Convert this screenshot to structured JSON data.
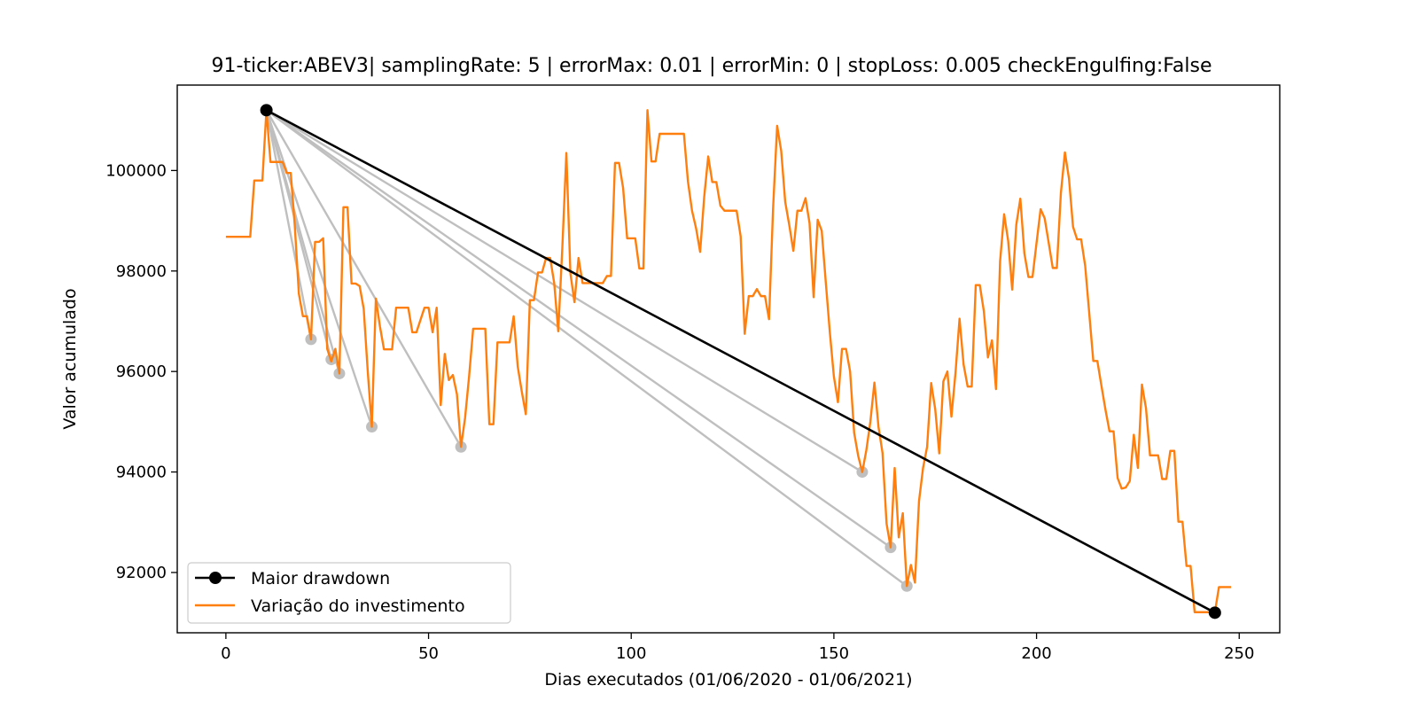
{
  "chart_data": {
    "type": "line",
    "title": "91-ticker:ABEV3| samplingRate: 5 | errorMax: 0.01 | errorMin: 0 | stopLoss: 0.005 checkEngulfing:False",
    "xlabel": "Dias executados (01/06/2020 - 01/06/2021)",
    "ylabel": "Valor acumulado",
    "xlim": [
      -12,
      260
    ],
    "ylim": [
      90800,
      101700
    ],
    "xticks": [
      0,
      50,
      100,
      150,
      200,
      250
    ],
    "yticks": [
      92000,
      94000,
      96000,
      98000,
      100000
    ],
    "legend_position": "lower-left",
    "grid": false,
    "colors": {
      "main": "#ff7f0e",
      "drawdown": "#000000",
      "minor": "#bfbfbf"
    },
    "series": [
      {
        "name": "Variação do investimento",
        "color": "#ff7f0e",
        "points": [
          [
            0,
            98680
          ],
          [
            6,
            98680
          ],
          [
            7,
            99800
          ],
          [
            9,
            99800
          ],
          [
            10,
            101200
          ],
          [
            11,
            100170
          ],
          [
            14,
            100170
          ],
          [
            15,
            99950
          ],
          [
            16,
            99950
          ],
          [
            17,
            98900
          ],
          [
            18,
            97550
          ],
          [
            19,
            97100
          ],
          [
            20,
            97100
          ],
          [
            21,
            96640
          ],
          [
            22,
            98580
          ],
          [
            23,
            98580
          ],
          [
            24,
            98650
          ],
          [
            25,
            96450
          ],
          [
            26,
            96200
          ],
          [
            27,
            96450
          ],
          [
            28,
            95960
          ],
          [
            29,
            99270
          ],
          [
            30,
            99270
          ],
          [
            31,
            97750
          ],
          [
            32,
            97750
          ],
          [
            33,
            97700
          ],
          [
            34,
            97250
          ],
          [
            35,
            96000
          ],
          [
            36,
            94900
          ],
          [
            37,
            97450
          ],
          [
            38,
            96900
          ],
          [
            39,
            96440
          ],
          [
            41,
            96440
          ],
          [
            42,
            97270
          ],
          [
            45,
            97270
          ],
          [
            46,
            96780
          ],
          [
            47,
            96780
          ],
          [
            49,
            97270
          ],
          [
            50,
            97270
          ],
          [
            51,
            96780
          ],
          [
            52,
            97270
          ],
          [
            53,
            95330
          ],
          [
            54,
            96350
          ],
          [
            55,
            95830
          ],
          [
            56,
            95930
          ],
          [
            57,
            95550
          ],
          [
            58,
            94500
          ],
          [
            59,
            95070
          ],
          [
            60,
            95900
          ],
          [
            61,
            96850
          ],
          [
            64,
            96850
          ],
          [
            65,
            94950
          ],
          [
            66,
            94950
          ],
          [
            67,
            96580
          ],
          [
            70,
            96580
          ],
          [
            71,
            97100
          ],
          [
            72,
            96100
          ],
          [
            73,
            95600
          ],
          [
            74,
            95150
          ],
          [
            75,
            97420
          ],
          [
            76,
            97420
          ],
          [
            77,
            97970
          ],
          [
            78,
            97970
          ],
          [
            79,
            98260
          ],
          [
            80,
            98260
          ],
          [
            81,
            97760
          ],
          [
            82,
            96800
          ],
          [
            83,
            98460
          ],
          [
            84,
            100350
          ],
          [
            85,
            97950
          ],
          [
            86,
            97380
          ],
          [
            87,
            98260
          ],
          [
            88,
            97760
          ],
          [
            92,
            97760
          ],
          [
            93,
            97760
          ],
          [
            94,
            97900
          ],
          [
            95,
            97900
          ],
          [
            96,
            100150
          ],
          [
            97,
            100150
          ],
          [
            98,
            99650
          ],
          [
            99,
            98650
          ],
          [
            101,
            98650
          ],
          [
            102,
            98050
          ],
          [
            103,
            98050
          ],
          [
            104,
            101200
          ],
          [
            105,
            100180
          ],
          [
            106,
            100180
          ],
          [
            107,
            100730
          ],
          [
            113,
            100730
          ],
          [
            114,
            99780
          ],
          [
            115,
            99200
          ],
          [
            116,
            98850
          ],
          [
            117,
            98380
          ],
          [
            118,
            99470
          ],
          [
            119,
            100280
          ],
          [
            120,
            99770
          ],
          [
            121,
            99770
          ],
          [
            122,
            99300
          ],
          [
            123,
            99200
          ],
          [
            126,
            99200
          ],
          [
            127,
            98690
          ],
          [
            128,
            96750
          ],
          [
            129,
            97500
          ],
          [
            130,
            97500
          ],
          [
            131,
            97640
          ],
          [
            132,
            97500
          ],
          [
            133,
            97500
          ],
          [
            134,
            97040
          ],
          [
            135,
            99250
          ],
          [
            136,
            100890
          ],
          [
            137,
            100390
          ],
          [
            138,
            99370
          ],
          [
            139,
            98910
          ],
          [
            140,
            98400
          ],
          [
            141,
            99200
          ],
          [
            142,
            99200
          ],
          [
            143,
            99450
          ],
          [
            144,
            98950
          ],
          [
            145,
            97480
          ],
          [
            146,
            99020
          ],
          [
            147,
            98800
          ],
          [
            148,
            97780
          ],
          [
            149,
            96780
          ],
          [
            150,
            95900
          ],
          [
            151,
            95390
          ],
          [
            152,
            96450
          ],
          [
            153,
            96450
          ],
          [
            154,
            96000
          ],
          [
            155,
            94780
          ],
          [
            156,
            94320
          ],
          [
            157,
            94000
          ],
          [
            158,
            94430
          ],
          [
            159,
            95000
          ],
          [
            160,
            95780
          ],
          [
            161,
            94900
          ],
          [
            162,
            94380
          ],
          [
            163,
            92970
          ],
          [
            164,
            92500
          ],
          [
            165,
            94080
          ],
          [
            166,
            92700
          ],
          [
            167,
            93180
          ],
          [
            168,
            91730
          ],
          [
            169,
            92150
          ],
          [
            170,
            91800
          ],
          [
            171,
            93420
          ],
          [
            172,
            94080
          ],
          [
            173,
            94500
          ],
          [
            174,
            95770
          ],
          [
            175,
            95250
          ],
          [
            176,
            94370
          ],
          [
            177,
            95800
          ],
          [
            178,
            96000
          ],
          [
            179,
            95100
          ],
          [
            180,
            95970
          ],
          [
            181,
            97050
          ],
          [
            182,
            96140
          ],
          [
            183,
            95700
          ],
          [
            184,
            95700
          ],
          [
            185,
            97720
          ],
          [
            186,
            97720
          ],
          [
            187,
            97200
          ],
          [
            188,
            96280
          ],
          [
            189,
            96620
          ],
          [
            190,
            95650
          ],
          [
            191,
            98190
          ],
          [
            192,
            99130
          ],
          [
            193,
            98600
          ],
          [
            194,
            97630
          ],
          [
            195,
            98920
          ],
          [
            196,
            99440
          ],
          [
            197,
            98350
          ],
          [
            198,
            97880
          ],
          [
            199,
            97880
          ],
          [
            200,
            98560
          ],
          [
            201,
            99230
          ],
          [
            202,
            99050
          ],
          [
            203,
            98560
          ],
          [
            204,
            98060
          ],
          [
            205,
            98060
          ],
          [
            206,
            99550
          ],
          [
            207,
            100360
          ],
          [
            208,
            99840
          ],
          [
            209,
            98880
          ],
          [
            210,
            98630
          ],
          [
            211,
            98630
          ],
          [
            212,
            98100
          ],
          [
            213,
            97160
          ],
          [
            214,
            96210
          ],
          [
            215,
            96210
          ],
          [
            216,
            95720
          ],
          [
            217,
            95240
          ],
          [
            218,
            94810
          ],
          [
            219,
            94810
          ],
          [
            220,
            93880
          ],
          [
            221,
            93670
          ],
          [
            222,
            93690
          ],
          [
            223,
            93820
          ],
          [
            224,
            94740
          ],
          [
            225,
            94080
          ],
          [
            226,
            95740
          ],
          [
            227,
            95270
          ],
          [
            228,
            94330
          ],
          [
            230,
            94330
          ],
          [
            231,
            93860
          ],
          [
            232,
            93860
          ],
          [
            233,
            94420
          ],
          [
            234,
            94420
          ],
          [
            235,
            93010
          ],
          [
            236,
            93010
          ],
          [
            237,
            92130
          ],
          [
            238,
            92130
          ],
          [
            239,
            91210
          ],
          [
            243,
            91210
          ],
          [
            244,
            91210
          ],
          [
            245,
            91710
          ],
          [
            248,
            91710
          ]
        ]
      },
      {
        "name": "Maior drawdown",
        "color": "#000000",
        "points": [
          [
            10,
            101200
          ],
          [
            244,
            91200
          ]
        ]
      }
    ],
    "minor_drawdowns": [
      [
        [
          10,
          101200
        ],
        [
          21,
          96640
        ]
      ],
      [
        [
          10,
          101200
        ],
        [
          26,
          96240
        ]
      ],
      [
        [
          10,
          101200
        ],
        [
          28,
          95960
        ]
      ],
      [
        [
          10,
          101200
        ],
        [
          36,
          94900
        ]
      ],
      [
        [
          10,
          101200
        ],
        [
          58,
          94500
        ]
      ],
      [
        [
          10,
          101200
        ],
        [
          157,
          94000
        ]
      ],
      [
        [
          10,
          101200
        ],
        [
          164,
          92500
        ]
      ],
      [
        [
          10,
          101200
        ],
        [
          168,
          91730
        ]
      ]
    ]
  }
}
